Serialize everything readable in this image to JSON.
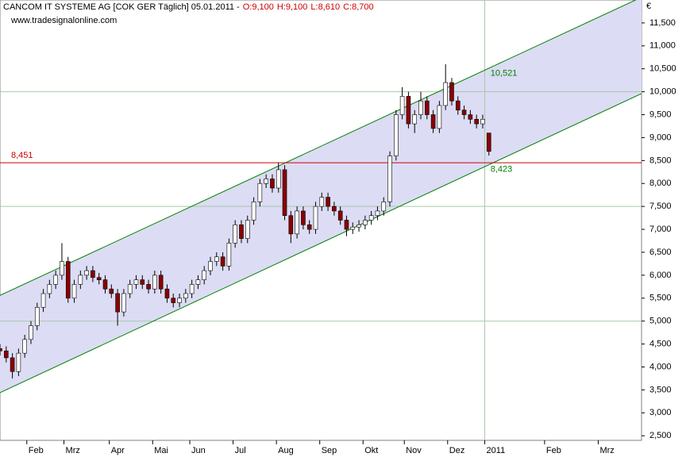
{
  "chart_data": {
    "type": "candlestick",
    "title": "CANCOM IT SYSTEME AG [COK GER  Täglich] 05.01.2011 -",
    "ohlc_labels": [
      "O:9,100",
      "H:9,100",
      "L:8,610",
      "C:8,700"
    ],
    "subtitle": "www.tradesignalonline.com",
    "currency": "€",
    "xlim": [
      0,
      311
    ],
    "xticks": [
      {
        "value": 13,
        "label": "Feb"
      },
      {
        "value": 31,
        "label": "Mrz"
      },
      {
        "value": 53,
        "label": "Apr"
      },
      {
        "value": 74,
        "label": "Mai"
      },
      {
        "value": 92,
        "label": "Jun"
      },
      {
        "value": 113,
        "label": "Jul"
      },
      {
        "value": 134,
        "label": "Aug"
      },
      {
        "value": 155,
        "label": "Sep"
      },
      {
        "value": 176,
        "label": "Okt"
      },
      {
        "value": 196,
        "label": "Nov"
      },
      {
        "value": 217,
        "label": "Dez"
      },
      {
        "value": 235,
        "label": "2011"
      },
      {
        "value": 264,
        "label": "Feb"
      },
      {
        "value": 290,
        "label": "Mrz"
      }
    ],
    "ylim": [
      2.4,
      12.0
    ],
    "yticks": [
      {
        "value": 2.5,
        "label": "2,500"
      },
      {
        "value": 3.0,
        "label": "3,000"
      },
      {
        "value": 3.5,
        "label": "3,500"
      },
      {
        "value": 4.0,
        "label": "4,000"
      },
      {
        "value": 4.5,
        "label": "4,500"
      },
      {
        "value": 5.0,
        "label": "5,000"
      },
      {
        "value": 5.5,
        "label": "5,500"
      },
      {
        "value": 6.0,
        "label": "6,000"
      },
      {
        "value": 6.5,
        "label": "6,500"
      },
      {
        "value": 7.0,
        "label": "7,000"
      },
      {
        "value": 7.5,
        "label": "7,500"
      },
      {
        "value": 8.0,
        "label": "8,000"
      },
      {
        "value": 8.5,
        "label": "8,500"
      },
      {
        "value": 9.0,
        "label": "9,000"
      },
      {
        "value": 9.5,
        "label": "9,500"
      },
      {
        "value": 10.0,
        "label": "10,000"
      },
      {
        "value": 10.5,
        "label": "10,500"
      },
      {
        "value": 11.0,
        "label": "11,000"
      },
      {
        "value": 11.5,
        "label": "11,500"
      }
    ],
    "hgrid": [
      5,
      7.5,
      10
    ],
    "vgrid": [
      235
    ],
    "grid_color": "#a8c8a8",
    "up_color": "#ffffff",
    "down_color": "#8b0000",
    "series": [
      {
        "x": [
          0,
          3,
          6,
          9,
          12,
          15,
          18,
          21,
          24,
          27,
          30,
          33,
          36,
          39,
          42,
          45,
          48,
          51,
          54,
          57,
          60,
          63,
          66,
          69,
          72,
          75,
          78,
          81,
          84,
          87,
          90,
          93,
          96,
          99,
          102,
          105,
          108,
          111,
          114,
          117,
          120,
          123,
          126,
          129,
          132,
          135,
          138,
          141,
          144,
          147,
          150,
          153,
          156,
          159,
          162,
          165,
          168,
          171,
          174,
          177,
          180,
          183,
          186,
          189,
          192,
          195,
          198,
          201,
          204,
          207,
          210,
          213,
          216,
          219,
          222,
          225,
          228,
          231,
          234,
          237
        ],
        "open": [
          4.4,
          4.35,
          4.2,
          3.9,
          4.3,
          4.6,
          4.9,
          5.3,
          5.6,
          5.8,
          6.0,
          6.3,
          5.5,
          5.8,
          6.0,
          6.1,
          5.95,
          5.9,
          5.7,
          5.6,
          5.2,
          5.6,
          5.8,
          5.9,
          5.8,
          5.7,
          6.0,
          5.7,
          5.5,
          5.4,
          5.5,
          5.6,
          5.8,
          5.9,
          6.1,
          6.3,
          6.4,
          6.2,
          6.7,
          7.1,
          6.8,
          7.2,
          7.6,
          8.0,
          8.1,
          7.9,
          8.3,
          7.3,
          6.9,
          7.4,
          7.1,
          7.0,
          7.5,
          7.7,
          7.5,
          7.4,
          7.2,
          7.0,
          7.05,
          7.1,
          7.2,
          7.3,
          7.4,
          7.6,
          8.6,
          9.5,
          9.9,
          9.3,
          9.5,
          9.8,
          9.5,
          9.2,
          9.7,
          10.2,
          9.8,
          9.6,
          9.5,
          9.4,
          9.3,
          9.1
        ],
        "high": [
          4.5,
          4.45,
          4.3,
          4.4,
          4.7,
          5.0,
          5.4,
          5.7,
          5.9,
          6.1,
          6.7,
          6.4,
          5.9,
          6.1,
          6.2,
          6.2,
          6.05,
          6.0,
          5.8,
          5.7,
          5.7,
          5.9,
          6.0,
          6.0,
          5.9,
          6.1,
          6.1,
          5.8,
          5.6,
          5.6,
          5.7,
          5.9,
          6.0,
          6.2,
          6.4,
          6.5,
          6.5,
          6.8,
          7.2,
          7.2,
          7.3,
          7.7,
          8.1,
          8.2,
          8.2,
          8.45,
          8.4,
          7.4,
          7.5,
          7.5,
          7.2,
          7.6,
          7.8,
          7.8,
          7.6,
          7.5,
          7.3,
          7.15,
          7.2,
          7.3,
          7.4,
          7.5,
          7.7,
          8.7,
          9.6,
          10.1,
          10.0,
          9.6,
          10.0,
          9.9,
          9.6,
          9.8,
          10.6,
          10.3,
          9.9,
          9.7,
          9.6,
          9.5,
          9.5,
          9.1
        ],
        "low": [
          4.25,
          4.1,
          3.75,
          3.8,
          4.2,
          4.5,
          4.8,
          5.2,
          5.5,
          5.7,
          5.9,
          5.4,
          5.4,
          5.7,
          5.9,
          5.85,
          5.8,
          5.6,
          5.5,
          4.9,
          5.1,
          5.5,
          5.7,
          5.7,
          5.6,
          5.6,
          5.6,
          5.4,
          5.3,
          5.3,
          5.4,
          5.5,
          5.7,
          5.8,
          6.0,
          6.2,
          6.1,
          6.1,
          6.6,
          6.7,
          6.7,
          7.1,
          7.5,
          7.9,
          7.8,
          7.8,
          7.2,
          6.7,
          6.8,
          7.0,
          6.9,
          6.9,
          7.4,
          7.4,
          7.3,
          7.1,
          6.85,
          6.9,
          6.95,
          7.0,
          7.1,
          7.2,
          7.3,
          7.5,
          8.5,
          9.4,
          9.2,
          9.1,
          9.4,
          9.4,
          9.1,
          9.1,
          9.6,
          9.7,
          9.5,
          9.4,
          9.3,
          9.2,
          9.2,
          8.61
        ],
        "close": [
          4.35,
          4.2,
          3.9,
          4.3,
          4.6,
          4.9,
          5.3,
          5.6,
          5.8,
          6.0,
          6.3,
          5.5,
          5.8,
          6.0,
          6.1,
          5.95,
          5.9,
          5.7,
          5.6,
          5.2,
          5.6,
          5.8,
          5.9,
          5.8,
          5.7,
          6.0,
          5.7,
          5.5,
          5.4,
          5.5,
          5.6,
          5.8,
          5.9,
          6.1,
          6.3,
          6.4,
          6.2,
          6.7,
          7.1,
          6.8,
          7.2,
          7.6,
          8.0,
          8.1,
          7.9,
          8.3,
          7.3,
          6.9,
          7.4,
          7.1,
          7.0,
          7.5,
          7.7,
          7.5,
          7.4,
          7.2,
          7.0,
          7.05,
          7.1,
          7.2,
          7.3,
          7.4,
          7.6,
          8.6,
          9.5,
          9.9,
          9.3,
          9.5,
          9.8,
          9.5,
          9.2,
          9.7,
          10.2,
          9.8,
          9.6,
          9.5,
          9.4,
          9.3,
          9.4,
          8.7
        ]
      }
    ],
    "channel": {
      "x": [
        0,
        311
      ],
      "upper": [
        5.56,
        12.06
      ],
      "lower": [
        3.44,
        9.96
      ],
      "color": "#008000",
      "fill": "#dcdcf5",
      "labels": [
        {
          "value": 10.521,
          "label": "10,521"
        },
        {
          "value": 8.423,
          "label": "8,423"
        }
      ]
    },
    "level": {
      "value": 8.451,
      "label": "8,451",
      "color": "#cc0000"
    }
  }
}
